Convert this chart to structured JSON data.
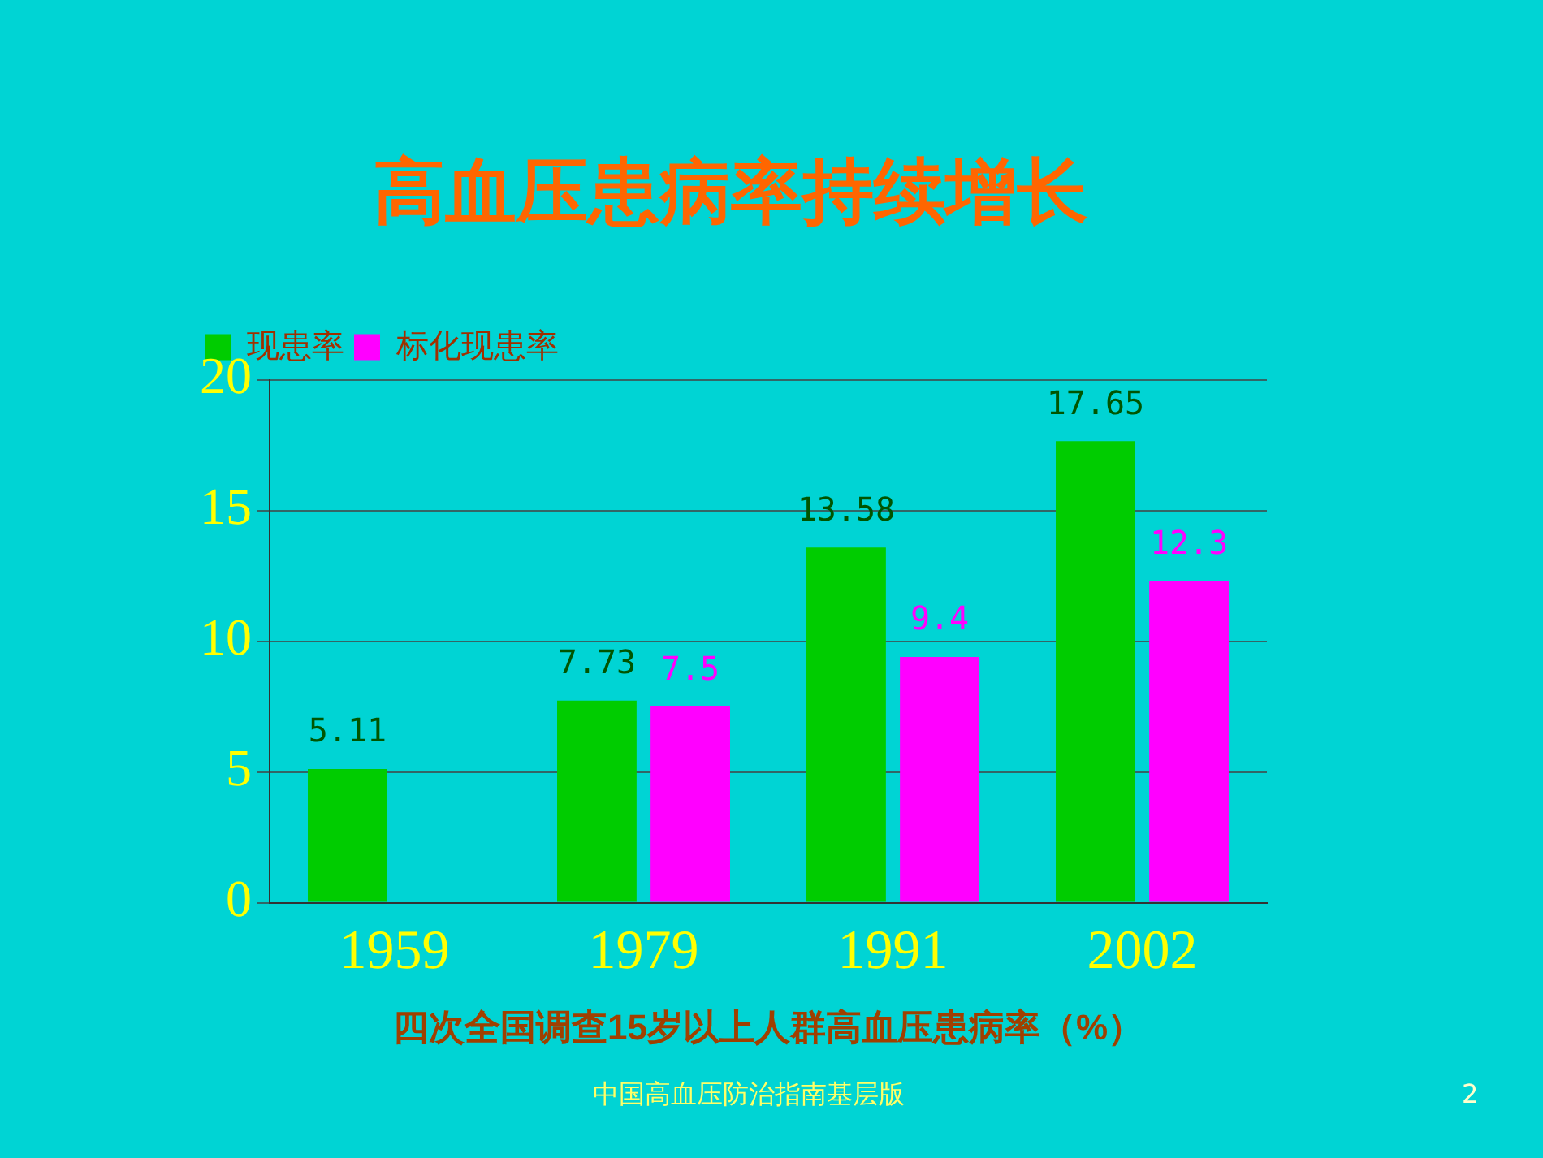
{
  "chart_data": {
    "type": "bar",
    "title": "高血压患病率持续增长",
    "xlabel": "四次全国调查15岁以上人群高血压患病率（%）",
    "categories": [
      "1959",
      "1979",
      "1991",
      "2002"
    ],
    "series": [
      {
        "name": "现患率",
        "color": "#00cc00",
        "values": [
          5.11,
          7.73,
          13.58,
          17.65
        ]
      },
      {
        "name": "标化现患率",
        "color": "#ff00ff",
        "values": [
          null,
          7.5,
          9.4,
          12.3
        ]
      }
    ],
    "ylim": [
      0,
      20
    ],
    "yticks": [
      0,
      5,
      10,
      15,
      20
    ],
    "grid": "y",
    "legend": "top left",
    "data_labels": true,
    "annotations": [
      "中国高血压防治指南基层版",
      "2"
    ]
  }
}
